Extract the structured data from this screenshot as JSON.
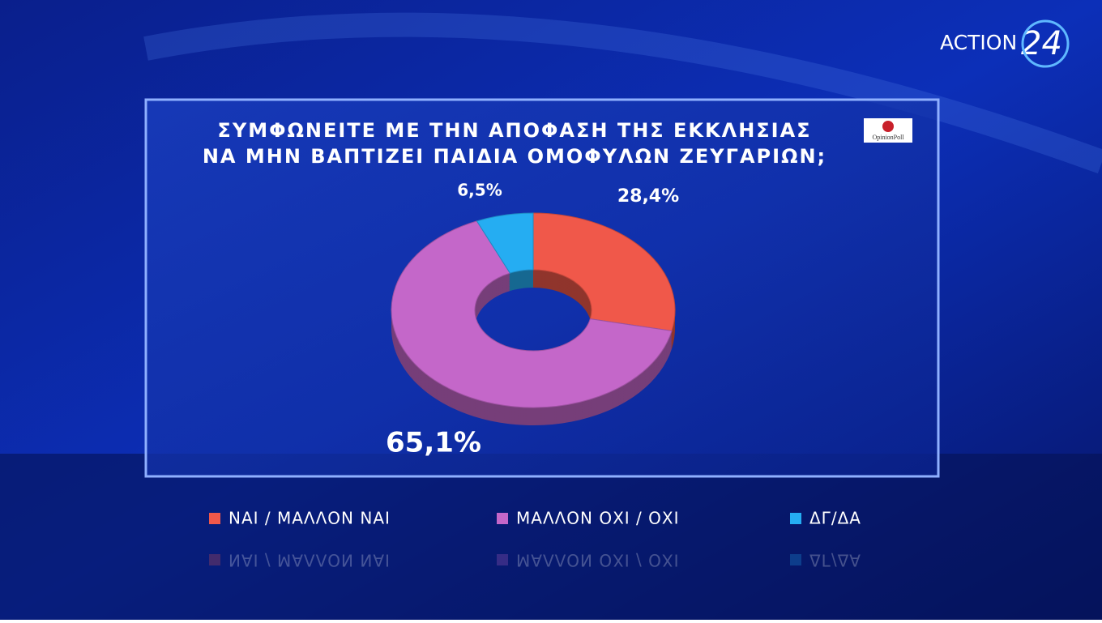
{
  "chart_data": {
    "type": "donut",
    "title": [
      "ΣΥΜΦΩΝΕΙΤΕ ΜΕ ΤΗΝ ΑΠΟΦΑΣΗ ΤΗΣ ΕΚΚΛΗΣΙΑΣ",
      "ΝΑ ΜΗΝ ΒΑΠΤΙΖΕΙ ΠΑΙΔΙΑ ΟΜΟΦΥΛΩΝ ΖΕΥΓΑΡΙΩΝ;"
    ],
    "categories": [
      "ΝΑΙ / ΜΑΛΛΟΝ ΝΑΙ",
      "ΜΑΛΛΟΝ ΟΧΙ / ΟΧΙ",
      "ΔΓ/ΔΑ"
    ],
    "values": [
      28.4,
      65.1,
      6.5
    ],
    "value_labels": [
      "28,4%",
      "65,1%",
      "6,5%"
    ],
    "colors": [
      "#f0584a",
      "#c467c9",
      "#25adf2"
    ]
  },
  "logos": {
    "channel": "ACTION",
    "channel_number": "24",
    "pollster": "OpinionPoll"
  }
}
